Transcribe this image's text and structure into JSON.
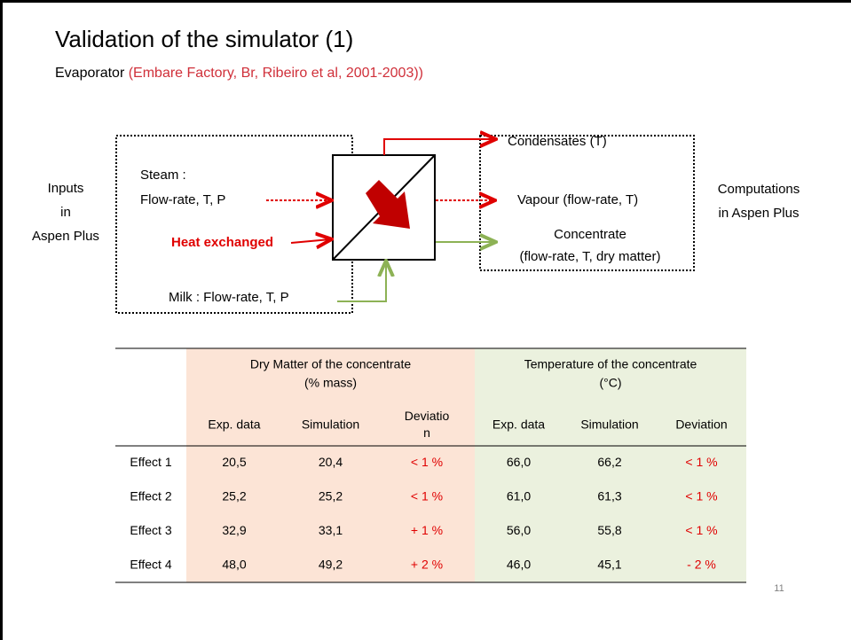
{
  "title": "Validation of the simulator (1)",
  "subtitle": {
    "text": "Evaporator",
    "source": "(Embare Factory, Br, Ribeiro et al, 2001-2003))"
  },
  "diagram": {
    "inputs_label": [
      "Inputs",
      "in",
      "Aspen Plus"
    ],
    "steam": [
      "Steam :",
      "Flow-rate, T, P"
    ],
    "heat": "Heat exchanged",
    "milk": "Milk : Flow-rate, T, P",
    "condensates": "Condensates (T)",
    "vapour": "Vapour (flow-rate, T)",
    "concentrate": [
      "Concentrate",
      "(flow-rate, T, dry matter)"
    ],
    "outputs_label": [
      "Computations",
      "in Aspen Plus"
    ]
  },
  "table": {
    "groups": [
      {
        "title": [
          "Dry Matter of the concentrate",
          "(% mass)"
        ],
        "columns": [
          [
            "Exp. data"
          ],
          [
            "Simulation"
          ],
          [
            "Deviatio",
            "n"
          ]
        ]
      },
      {
        "title": [
          "Temperature of the concentrate",
          "(°C)"
        ],
        "columns": [
          [
            "Exp. data"
          ],
          [
            "Simulation"
          ],
          [
            "Deviation"
          ]
        ]
      }
    ],
    "rows": [
      {
        "label": "Effect 1",
        "values": [
          "20,5",
          "20,4",
          "< 1 %",
          "66,0",
          "66,2",
          "< 1 %"
        ]
      },
      {
        "label": "Effect 2",
        "values": [
          "25,2",
          "25,2",
          "< 1 %",
          "61,0",
          "61,3",
          "< 1 %"
        ]
      },
      {
        "label": "Effect 3",
        "values": [
          "32,9",
          "33,1",
          "+ 1 %",
          "56,0",
          "55,8",
          "< 1 %"
        ]
      },
      {
        "label": "Effect 4",
        "values": [
          "48,0",
          "49,2",
          "+ 2 %",
          "46,0",
          "45,1",
          "- 2 %"
        ]
      }
    ]
  },
  "page_number": "11"
}
